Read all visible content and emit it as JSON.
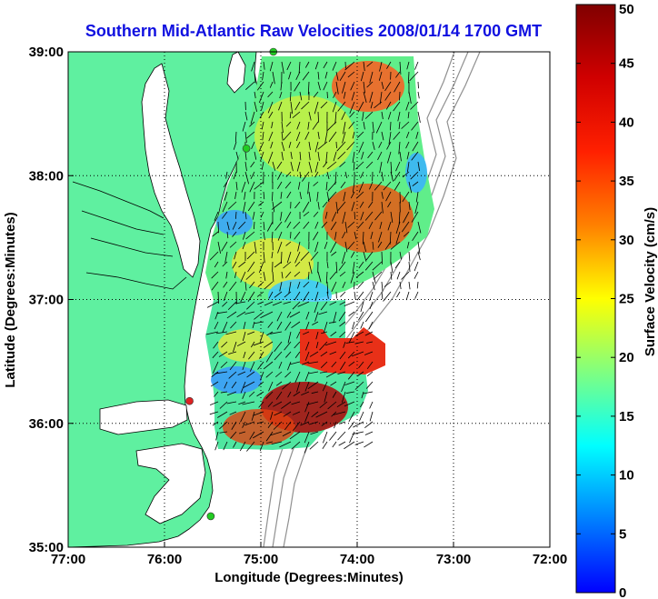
{
  "chart_data": {
    "type": "heatmap",
    "title": "Southern Mid-Atlantic Raw Velocities 2008/01/14 1700 GMT",
    "xlabel": "Longitude (Degrees:Minutes)",
    "ylabel": "Latitude (Degrees:Minutes)",
    "x_ticks": [
      {
        "value": -77,
        "label": "77:00"
      },
      {
        "value": -76,
        "label": "76:00"
      },
      {
        "value": -75,
        "label": "75:00"
      },
      {
        "value": -74,
        "label": "74:00"
      },
      {
        "value": -73,
        "label": "73:00"
      },
      {
        "value": -72,
        "label": "72:00"
      }
    ],
    "y_ticks": [
      {
        "value": 35,
        "label": "35:00"
      },
      {
        "value": 36,
        "label": "36:00"
      },
      {
        "value": 37,
        "label": "37:00"
      },
      {
        "value": 38,
        "label": "38:00"
      },
      {
        "value": 39,
        "label": "39:00"
      }
    ],
    "xlim": [
      -77,
      -72
    ],
    "ylim": [
      35,
      39
    ],
    "grid": true,
    "colorbar": {
      "label": "Surface Velocity (cm/s)",
      "min": 0,
      "max": 50,
      "ticks": [
        0,
        5,
        10,
        15,
        20,
        25,
        30,
        35,
        40,
        45,
        50
      ]
    },
    "colormap": [
      "#0000ff",
      "#00a0ff",
      "#00ffff",
      "#80ff80",
      "#ffff00",
      "#ff8000",
      "#ff0000",
      "#800000"
    ],
    "land_color": "#5ff0a0",
    "coast_color": "#000000",
    "isobath_color": "#909090",
    "stations": [
      {
        "lon": -74.87,
        "lat": 39.0,
        "color": "#22cc22"
      },
      {
        "lon": -75.15,
        "lat": 38.22,
        "color": "#22cc22"
      },
      {
        "lon": -75.74,
        "lat": 36.18,
        "color": "#dd2222"
      },
      {
        "lon": -75.52,
        "lat": 35.25,
        "color": "#22cc22"
      }
    ]
  }
}
